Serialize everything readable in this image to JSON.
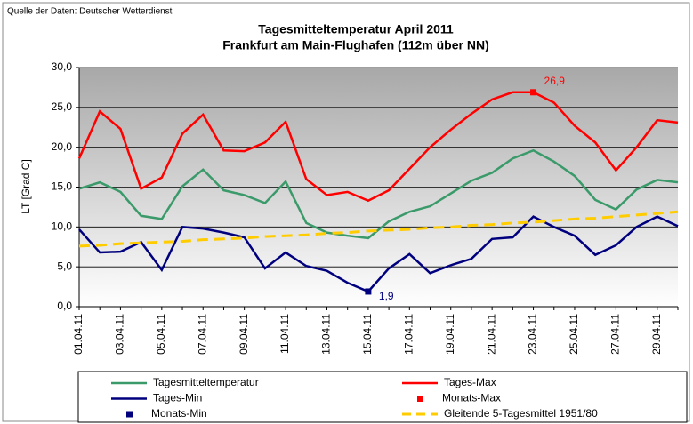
{
  "chart_data": {
    "type": "line",
    "source": "Quelle der Daten: Deutscher Wetterdienst",
    "title": "Tagesmitteltemperatur  April 2011",
    "subtitle": "Frankfurt am Main-Flughafen (112m  über NN)",
    "y_label": "LT [Grad C]",
    "categories": [
      "01.04.11",
      null,
      "03.04.11",
      null,
      "05.04.11",
      null,
      "07.04.11",
      null,
      "09.04.11",
      null,
      "11.04.11",
      null,
      "13.04.11",
      null,
      "15.04.11",
      null,
      "17.04.11",
      null,
      "19.04.11",
      null,
      "21.04.11",
      null,
      "23.04.11",
      null,
      "25.04.11",
      null,
      "27.04.11",
      null,
      "29.04.11",
      null
    ],
    "ylim": [
      0,
      30
    ],
    "yticks": [
      {
        "value": 0,
        "label": "0,0"
      },
      {
        "value": 5,
        "label": "5,0"
      },
      {
        "value": 10,
        "label": "10,0"
      },
      {
        "value": 15,
        "label": "15,0"
      },
      {
        "value": 20,
        "label": "20,0"
      },
      {
        "value": 25,
        "label": "25,0"
      },
      {
        "value": 30,
        "label": "30,0"
      }
    ],
    "grid": true,
    "series": [
      {
        "name": "Tagesmitteltemperatur",
        "color": "#3a9a6a",
        "style": "line",
        "values": [
          14.8,
          15.6,
          14.4,
          11.4,
          11.0,
          15.1,
          17.2,
          14.6,
          14.0,
          13.0,
          15.7,
          10.5,
          9.3,
          8.9,
          8.6,
          10.7,
          11.9,
          12.6,
          14.2,
          15.8,
          16.8,
          18.6,
          19.6,
          18.2,
          16.4,
          13.4,
          12.2,
          14.7,
          15.9,
          15.6
        ]
      },
      {
        "name": "Tages-Max",
        "color": "#ff0000",
        "style": "line",
        "values": [
          18.6,
          24.5,
          22.3,
          14.8,
          16.2,
          21.7,
          24.1,
          19.6,
          19.5,
          20.6,
          23.2,
          16.0,
          14.0,
          14.4,
          13.3,
          14.6,
          17.3,
          20.0,
          22.2,
          24.2,
          26.0,
          26.9,
          26.9,
          25.6,
          22.7,
          20.6,
          17.1,
          20.0,
          23.4,
          23.1
        ]
      },
      {
        "name": "Tages-Min",
        "color": "#00007f",
        "style": "line",
        "values": [
          9.7,
          6.8,
          6.9,
          8.1,
          4.6,
          10.0,
          9.8,
          9.3,
          8.7,
          4.8,
          6.8,
          5.1,
          4.5,
          3.0,
          1.9,
          4.8,
          6.6,
          4.2,
          5.2,
          6.0,
          8.5,
          8.7,
          11.3,
          10.0,
          8.9,
          6.5,
          7.7,
          10.0,
          11.3,
          10.1
        ]
      },
      {
        "name": "Monats-Max",
        "color": "#ff0000",
        "style": "marker",
        "values": [
          null,
          null,
          null,
          null,
          null,
          null,
          null,
          null,
          null,
          null,
          null,
          null,
          null,
          null,
          null,
          null,
          null,
          null,
          null,
          null,
          null,
          null,
          26.9,
          null,
          null,
          null,
          null,
          null,
          null,
          null
        ],
        "value_labels": [
          null,
          null,
          null,
          null,
          null,
          null,
          null,
          null,
          null,
          null,
          null,
          null,
          null,
          null,
          null,
          null,
          null,
          null,
          null,
          null,
          null,
          null,
          "26,9",
          null,
          null,
          null,
          null,
          null,
          null,
          null
        ]
      },
      {
        "name": "Monats-Min",
        "color": "#00007f",
        "style": "marker",
        "values": [
          null,
          null,
          null,
          null,
          null,
          null,
          null,
          null,
          null,
          null,
          null,
          null,
          null,
          null,
          1.9,
          null,
          null,
          null,
          null,
          null,
          null,
          null,
          null,
          null,
          null,
          null,
          null,
          null,
          null,
          null
        ],
        "value_labels": [
          null,
          null,
          null,
          null,
          null,
          null,
          null,
          null,
          null,
          null,
          null,
          null,
          null,
          null,
          "1,9",
          null,
          null,
          null,
          null,
          null,
          null,
          null,
          null,
          null,
          null,
          null,
          null,
          null,
          null,
          null
        ]
      },
      {
        "name": "Gleitende 5-Tagesmittel 1951/80",
        "color": "#ffcc00",
        "style": "dashed",
        "values": [
          7.6,
          7.7,
          7.9,
          8.0,
          8.1,
          8.2,
          8.4,
          8.5,
          8.6,
          8.8,
          8.9,
          9.0,
          9.2,
          9.3,
          9.5,
          9.6,
          9.7,
          9.9,
          10.0,
          10.2,
          10.3,
          10.5,
          10.6,
          10.8,
          11.0,
          11.1,
          11.3,
          11.5,
          11.7,
          11.9
        ]
      }
    ]
  }
}
